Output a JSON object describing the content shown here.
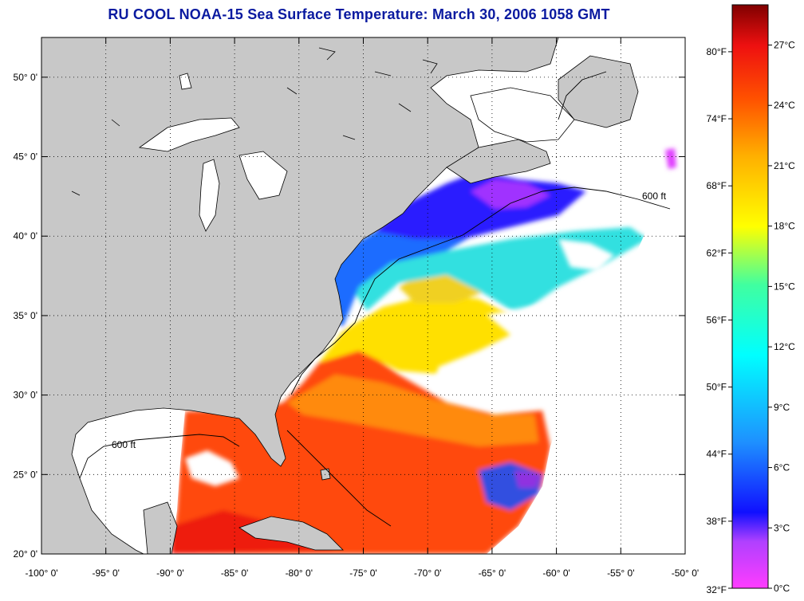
{
  "title": "RU COOL  NOAA-15  Sea Surface Temperature:  March 30, 2006 1058 GMT",
  "map": {
    "lon_range": [
      -100,
      -50
    ],
    "lat_range": [
      20,
      52.5
    ],
    "lon_ticks": [
      "-100° 0'",
      "-95° 0'",
      "-90° 0'",
      "-85° 0'",
      "-80° 0'",
      "-75° 0'",
      "-70° 0'",
      "-65° 0'",
      "-60° 0'",
      "-55° 0'",
      "-50° 0'"
    ],
    "lat_ticks": [
      "20° 0'",
      "25° 0'",
      "30° 0'",
      "35° 0'",
      "40° 0'",
      "45° 0'",
      "50° 0'"
    ],
    "isobath_label": "600 ft",
    "colors": {
      "land": "#c8c8c8",
      "cloud": "#ffffff",
      "coast": "#000000"
    }
  },
  "colorbar": {
    "fahrenheit_labels": [
      "80°F",
      "74°F",
      "68°F",
      "62°F",
      "56°F",
      "50°F",
      "44°F",
      "38°F",
      "32°F"
    ],
    "celsius_labels": [
      "27°C",
      "24°C",
      "21°C",
      "18°C",
      "15°C",
      "12°C",
      "9°C",
      "6°C",
      "3°C",
      "0°C"
    ],
    "range_c": [
      0,
      29
    ]
  }
}
